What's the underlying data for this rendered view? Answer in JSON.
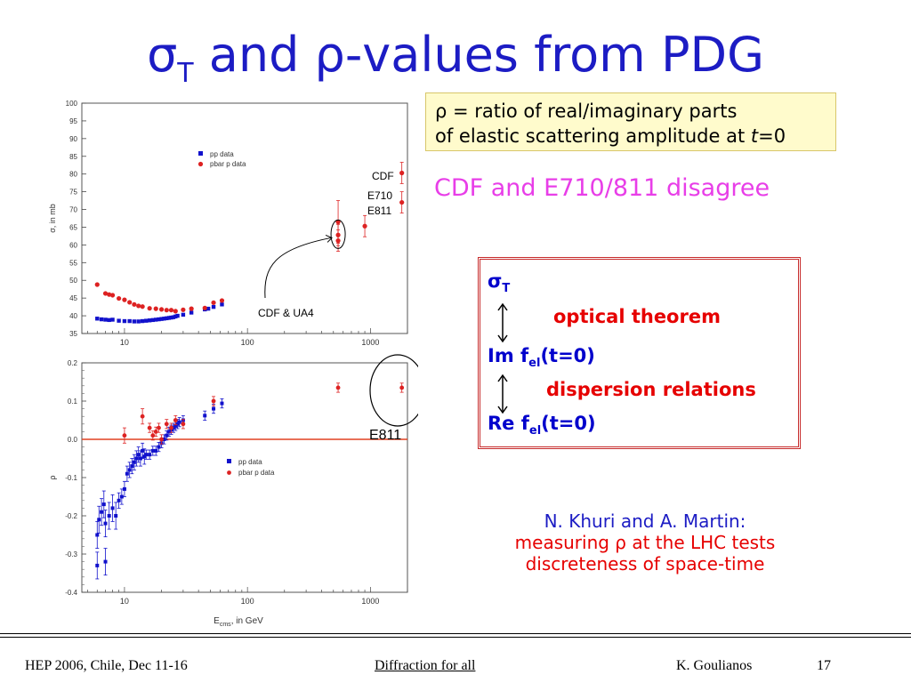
{
  "slide": {
    "title": {
      "sigma": "σ",
      "sub": "T",
      "rest": " and ρ-values from PDG"
    },
    "rho_box": {
      "line1": "ρ =  ratio of real/imaginary parts",
      "line2": "of elastic scattering amplitude at ",
      "t": "t",
      "eq": "=0"
    },
    "disagree": "CDF and E710/811 disagree",
    "relations": {
      "sigma": "σ",
      "sigma_sub": "T",
      "optical": "optical theorem",
      "im": "Im f",
      "im_sub": "el",
      "im_rest": "(t=0)",
      "dispersion": "dispersion relations",
      "re": "Re f",
      "re_sub": "el",
      "re_rest": "(t=0)"
    },
    "khuri": {
      "line1": "N. Khuri and A. Martin:",
      "line2": "measuring ρ at the LHC tests",
      "line3": "discreteness of space-time"
    },
    "footer": {
      "left": "HEP 2006, Chile, Dec 11-16",
      "center": "Diffraction for all",
      "author": "K. Goulianos",
      "page": "17"
    }
  },
  "colors": {
    "pp": "#1111cc",
    "pbarp": "#dd2222",
    "title": "#1c1cc4"
  },
  "chart_data": [
    {
      "type": "scatter",
      "ylabel": "σ, in mb",
      "xlog": true,
      "xlim": [
        4.5,
        2000
      ],
      "ylim": [
        35,
        100
      ],
      "yticks": [
        35,
        40,
        45,
        50,
        55,
        60,
        65,
        70,
        75,
        80,
        85,
        90,
        95,
        100
      ],
      "xticks": [
        10,
        100,
        1000
      ],
      "legend": [
        "pp data",
        "pbar p data"
      ],
      "annotations": [
        "CDF",
        "E710",
        "E811",
        "CDF & UA4"
      ],
      "series": [
        {
          "name": "pp data",
          "x": [
            6,
            6.5,
            7,
            7.5,
            8,
            9,
            10,
            11,
            12,
            13,
            14,
            15,
            16,
            17,
            18,
            19,
            20,
            21,
            22,
            23,
            24,
            25,
            26,
            27,
            30,
            35,
            45,
            48,
            53,
            62
          ],
          "y": [
            39.2,
            39,
            38.9,
            38.8,
            38.9,
            38.6,
            38.5,
            38.5,
            38.4,
            38.4,
            38.5,
            38.6,
            38.7,
            38.8,
            38.9,
            39,
            39.1,
            39.2,
            39.3,
            39.4,
            39.5,
            39.6,
            39.8,
            40,
            40.3,
            40.9,
            41.8,
            42,
            42.5,
            43.2
          ]
        },
        {
          "name": "pbar p data",
          "x": [
            6,
            7,
            7.5,
            8,
            9,
            10,
            11,
            12,
            13,
            14,
            16,
            18,
            20,
            22,
            24,
            26,
            30,
            35,
            45,
            53,
            62,
            546,
            546,
            546,
            900,
            1800,
            1800
          ],
          "y": [
            48.8,
            46.3,
            46,
            45.8,
            44.9,
            44.5,
            43.8,
            43.2,
            42.8,
            42.6,
            42.1,
            42,
            41.8,
            41.6,
            41.6,
            41.3,
            41.7,
            42,
            42.2,
            43.7,
            44.3,
            66.5,
            62.8,
            61.2,
            65.3,
            80.3,
            72
          ]
        }
      ]
    },
    {
      "type": "scatter",
      "ylabel": "ρ",
      "xlabel": "E",
      "xlabel_sub": "cms",
      "xlabel_rest": ", in GeV",
      "xlog": true,
      "xlim": [
        4.5,
        2000
      ],
      "ylim": [
        -0.4,
        0.2
      ],
      "yticks": [
        -0.4,
        -0.3,
        -0.2,
        -0.1,
        0.0,
        0.1,
        0.2
      ],
      "ytick_labels": [
        "-0.4",
        "-0.3",
        "-0.2",
        "-0.1",
        "0.0",
        "0.1",
        "0.2"
      ],
      "xticks": [
        10,
        100,
        1000
      ],
      "legend": [
        "pp    data",
        "pbar p data"
      ],
      "annotations": [
        "E811"
      ],
      "series": [
        {
          "name": "pp    data",
          "x": [
            6,
            6,
            6.2,
            6.5,
            6.8,
            7,
            7,
            7.5,
            8,
            8.5,
            9,
            9.5,
            10,
            10.5,
            11,
            11.5,
            12,
            12.5,
            13,
            13.5,
            14,
            14.5,
            15,
            16,
            17,
            18,
            19,
            20,
            21,
            22,
            23,
            24,
            25,
            26,
            27,
            28,
            30,
            45,
            53,
            62
          ],
          "y": [
            -0.33,
            -0.25,
            -0.21,
            -0.19,
            -0.17,
            -0.32,
            -0.22,
            -0.2,
            -0.18,
            -0.2,
            -0.16,
            -0.15,
            -0.13,
            -0.09,
            -0.08,
            -0.07,
            -0.06,
            -0.05,
            -0.04,
            -0.05,
            -0.03,
            -0.045,
            -0.04,
            -0.04,
            -0.03,
            -0.03,
            -0.02,
            -0.01,
            0,
            0.01,
            0.02,
            0.025,
            0.03,
            0.035,
            0.04,
            0.045,
            0.05,
            0.062,
            0.08,
            0.094
          ]
        },
        {
          "name": "pbar p data",
          "x": [
            10,
            14,
            16,
            17,
            18,
            19,
            20,
            22,
            24,
            26,
            30,
            53,
            546,
            1800
          ],
          "y": [
            0.01,
            0.06,
            0.03,
            0.01,
            0.02,
            0.03,
            0.0,
            0.04,
            0.03,
            0.05,
            0.04,
            0.1,
            0.135,
            0.135
          ]
        }
      ]
    }
  ]
}
